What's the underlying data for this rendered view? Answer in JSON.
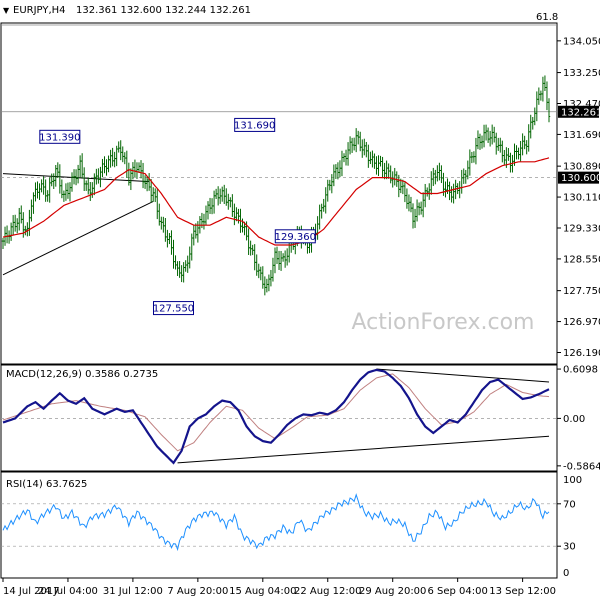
{
  "header": {
    "symbol": "EURJPY,H4",
    "ohlc": "132.361 132.600 132.244 132.261",
    "dropdown_glyph": "▼"
  },
  "watermark": "ActionForex.com",
  "colors": {
    "up_bar": "#006400",
    "down_bar": "#006400",
    "ma_line": "#d40000",
    "macd_line": "#14148c",
    "signal_line": "#c08080",
    "rsi_line": "#1e90ff",
    "price_tag_bg": "#000000",
    "price_tag_text": "#ffffff",
    "label_border": "#00008b",
    "label_text": "#00008b",
    "watermark": "#c8c8c8"
  },
  "chart_data": [
    {
      "type": "candlestick",
      "name": "EURJPY H4 price",
      "ylim": [
        125.9,
        134.5
      ],
      "yticks": [
        "134.050",
        "133.250",
        "132.470",
        "131.690",
        "130.890",
        "130.110",
        "129.330",
        "128.550",
        "127.750",
        "126.970",
        "126.190"
      ],
      "current_price": 132.261,
      "current_price_label": "132.261",
      "reference_level": 130.6,
      "reference_level_label": "130.600",
      "fib_label": "61.8",
      "annotations": [
        {
          "text": "131.390",
          "value": 131.39,
          "bar": 28
        },
        {
          "text": "127.550",
          "value": 127.55,
          "bar": 84
        },
        {
          "text": "131.690",
          "value": 131.69,
          "bar": 124
        },
        {
          "text": "129.360",
          "value": 129.36,
          "bar": 144
        }
      ],
      "close_path": [
        [
          0,
          129.0
        ],
        [
          4,
          129.3
        ],
        [
          8,
          129.6
        ],
        [
          12,
          129.2
        ],
        [
          14,
          130.0
        ],
        [
          18,
          130.4
        ],
        [
          22,
          130.2
        ],
        [
          26,
          130.8
        ],
        [
          30,
          130.1
        ],
        [
          34,
          130.5
        ],
        [
          38,
          130.9
        ],
        [
          42,
          130.2
        ],
        [
          46,
          130.6
        ],
        [
          50,
          130.9
        ],
        [
          54,
          131.1
        ],
        [
          58,
          131.35
        ],
        [
          62,
          130.6
        ],
        [
          66,
          130.9
        ],
        [
          70,
          130.5
        ],
        [
          74,
          130.2
        ],
        [
          78,
          129.4
        ],
        [
          82,
          129.0
        ],
        [
          86,
          128.2
        ],
        [
          90,
          128.3
        ],
        [
          94,
          129.2
        ],
        [
          98,
          129.5
        ],
        [
          102,
          129.9
        ],
        [
          106,
          130.2
        ],
        [
          110,
          130.1
        ],
        [
          114,
          129.7
        ],
        [
          118,
          129.4
        ],
        [
          122,
          128.8
        ],
        [
          126,
          128.2
        ],
        [
          130,
          127.8
        ],
        [
          134,
          128.6
        ],
        [
          138,
          128.5
        ],
        [
          142,
          128.9
        ],
        [
          146,
          129.2
        ],
        [
          150,
          128.9
        ],
        [
          154,
          129.3
        ],
        [
          158,
          130.0
        ],
        [
          162,
          130.6
        ],
        [
          166,
          130.9
        ],
        [
          170,
          131.3
        ],
        [
          174,
          131.6
        ],
        [
          178,
          131.3
        ],
        [
          182,
          131.0
        ],
        [
          186,
          130.9
        ],
        [
          190,
          130.7
        ],
        [
          194,
          130.5
        ],
        [
          198,
          130.2
        ],
        [
          202,
          129.6
        ],
        [
          206,
          129.9
        ],
        [
          210,
          130.4
        ],
        [
          214,
          130.8
        ],
        [
          218,
          130.3
        ],
        [
          222,
          130.2
        ],
        [
          226,
          130.5
        ],
        [
          230,
          131.0
        ],
        [
          234,
          131.5
        ],
        [
          238,
          131.7
        ],
        [
          242,
          131.6
        ],
        [
          246,
          131.2
        ],
        [
          250,
          131.0
        ],
        [
          254,
          131.3
        ],
        [
          258,
          131.5
        ],
        [
          262,
          132.3
        ],
        [
          266,
          133.0
        ],
        [
          269,
          132.26
        ]
      ],
      "ma_path": [
        [
          0,
          129.1
        ],
        [
          10,
          129.2
        ],
        [
          20,
          129.5
        ],
        [
          30,
          129.9
        ],
        [
          40,
          130.1
        ],
        [
          50,
          130.3
        ],
        [
          56,
          130.6
        ],
        [
          62,
          130.8
        ],
        [
          70,
          130.7
        ],
        [
          78,
          130.2
        ],
        [
          86,
          129.6
        ],
        [
          94,
          129.4
        ],
        [
          102,
          129.4
        ],
        [
          110,
          129.6
        ],
        [
          118,
          129.5
        ],
        [
          126,
          129.1
        ],
        [
          134,
          128.9
        ],
        [
          142,
          128.9
        ],
        [
          150,
          129.0
        ],
        [
          158,
          129.3
        ],
        [
          166,
          129.8
        ],
        [
          174,
          130.3
        ],
        [
          182,
          130.6
        ],
        [
          190,
          130.6
        ],
        [
          198,
          130.5
        ],
        [
          206,
          130.2
        ],
        [
          214,
          130.2
        ],
        [
          222,
          130.3
        ],
        [
          230,
          130.4
        ],
        [
          238,
          130.7
        ],
        [
          246,
          130.9
        ],
        [
          254,
          131.0
        ],
        [
          262,
          131.0
        ],
        [
          269,
          131.1
        ]
      ]
    },
    {
      "type": "line",
      "name": "MACD",
      "label": "MACD(12,26,9) 0.3586 0.2735",
      "ylim": [
        -0.65,
        0.66
      ],
      "yticks": [
        "0.6098",
        "0.00",
        "-0.5864"
      ],
      "macd_path": [
        [
          0,
          -0.05
        ],
        [
          6,
          0.0
        ],
        [
          12,
          0.15
        ],
        [
          16,
          0.2
        ],
        [
          20,
          0.12
        ],
        [
          24,
          0.22
        ],
        [
          28,
          0.31
        ],
        [
          32,
          0.22
        ],
        [
          36,
          0.18
        ],
        [
          40,
          0.25
        ],
        [
          44,
          0.12
        ],
        [
          50,
          0.05
        ],
        [
          56,
          0.12
        ],
        [
          60,
          0.08
        ],
        [
          64,
          0.1
        ],
        [
          68,
          -0.05
        ],
        [
          72,
          -0.2
        ],
        [
          76,
          -0.35
        ],
        [
          80,
          -0.45
        ],
        [
          84,
          -0.55
        ],
        [
          88,
          -0.4
        ],
        [
          92,
          -0.1
        ],
        [
          96,
          0.0
        ],
        [
          100,
          0.05
        ],
        [
          104,
          0.15
        ],
        [
          108,
          0.22
        ],
        [
          112,
          0.2
        ],
        [
          116,
          0.1
        ],
        [
          120,
          -0.1
        ],
        [
          124,
          -0.22
        ],
        [
          128,
          -0.28
        ],
        [
          132,
          -0.3
        ],
        [
          136,
          -0.2
        ],
        [
          140,
          -0.08
        ],
        [
          144,
          0.0
        ],
        [
          148,
          0.05
        ],
        [
          152,
          0.04
        ],
        [
          156,
          0.07
        ],
        [
          160,
          0.05
        ],
        [
          164,
          0.1
        ],
        [
          168,
          0.2
        ],
        [
          172,
          0.35
        ],
        [
          176,
          0.48
        ],
        [
          180,
          0.57
        ],
        [
          184,
          0.6
        ],
        [
          188,
          0.58
        ],
        [
          192,
          0.5
        ],
        [
          196,
          0.4
        ],
        [
          200,
          0.25
        ],
        [
          204,
          0.05
        ],
        [
          208,
          -0.1
        ],
        [
          212,
          -0.18
        ],
        [
          216,
          -0.1
        ],
        [
          220,
          -0.02
        ],
        [
          224,
          -0.05
        ],
        [
          228,
          0.05
        ],
        [
          232,
          0.2
        ],
        [
          236,
          0.35
        ],
        [
          240,
          0.45
        ],
        [
          244,
          0.48
        ],
        [
          248,
          0.4
        ],
        [
          252,
          0.32
        ],
        [
          256,
          0.24
        ],
        [
          260,
          0.26
        ],
        [
          264,
          0.3
        ],
        [
          269,
          0.36
        ]
      ],
      "signal_path": [
        [
          0,
          -0.02
        ],
        [
          12,
          0.08
        ],
        [
          24,
          0.18
        ],
        [
          36,
          0.22
        ],
        [
          48,
          0.15
        ],
        [
          60,
          0.1
        ],
        [
          70,
          0.02
        ],
        [
          78,
          -0.2
        ],
        [
          86,
          -0.4
        ],
        [
          94,
          -0.3
        ],
        [
          102,
          -0.05
        ],
        [
          110,
          0.15
        ],
        [
          118,
          0.1
        ],
        [
          126,
          -0.12
        ],
        [
          134,
          -0.25
        ],
        [
          142,
          -0.12
        ],
        [
          150,
          0.02
        ],
        [
          160,
          0.04
        ],
        [
          168,
          0.12
        ],
        [
          176,
          0.35
        ],
        [
          184,
          0.5
        ],
        [
          192,
          0.55
        ],
        [
          200,
          0.38
        ],
        [
          208,
          0.12
        ],
        [
          216,
          -0.08
        ],
        [
          224,
          -0.04
        ],
        [
          232,
          0.08
        ],
        [
          240,
          0.3
        ],
        [
          248,
          0.42
        ],
        [
          256,
          0.32
        ],
        [
          264,
          0.28
        ],
        [
          269,
          0.27
        ]
      ]
    },
    {
      "type": "line",
      "name": "RSI",
      "label": "RSI(14) 63.7625",
      "ylim": [
        0,
        100
      ],
      "yticks": [
        "100",
        "70",
        "30",
        "0"
      ],
      "levels": [
        70,
        30
      ],
      "rsi_path": [
        [
          0,
          45
        ],
        [
          6,
          55
        ],
        [
          12,
          64
        ],
        [
          16,
          52
        ],
        [
          20,
          60
        ],
        [
          26,
          68
        ],
        [
          30,
          56
        ],
        [
          34,
          62
        ],
        [
          40,
          48
        ],
        [
          44,
          58
        ],
        [
          50,
          60
        ],
        [
          56,
          68
        ],
        [
          62,
          52
        ],
        [
          66,
          62
        ],
        [
          70,
          55
        ],
        [
          74,
          48
        ],
        [
          78,
          38
        ],
        [
          82,
          32
        ],
        [
          86,
          30
        ],
        [
          90,
          45
        ],
        [
          94,
          55
        ],
        [
          98,
          60
        ],
        [
          104,
          62
        ],
        [
          110,
          50
        ],
        [
          114,
          58
        ],
        [
          118,
          40
        ],
        [
          122,
          35
        ],
        [
          126,
          30
        ],
        [
          130,
          38
        ],
        [
          134,
          40
        ],
        [
          138,
          48
        ],
        [
          142,
          42
        ],
        [
          146,
          55
        ],
        [
          150,
          44
        ],
        [
          154,
          52
        ],
        [
          158,
          60
        ],
        [
          162,
          64
        ],
        [
          166,
          70
        ],
        [
          170,
          72
        ],
        [
          174,
          76
        ],
        [
          178,
          62
        ],
        [
          182,
          58
        ],
        [
          186,
          60
        ],
        [
          190,
          52
        ],
        [
          194,
          54
        ],
        [
          198,
          50
        ],
        [
          202,
          35
        ],
        [
          206,
          44
        ],
        [
          210,
          58
        ],
        [
          214,
          62
        ],
        [
          218,
          48
        ],
        [
          222,
          52
        ],
        [
          226,
          62
        ],
        [
          230,
          68
        ],
        [
          234,
          70
        ],
        [
          238,
          72
        ],
        [
          242,
          60
        ],
        [
          246,
          56
        ],
        [
          250,
          62
        ],
        [
          254,
          70
        ],
        [
          258,
          65
        ],
        [
          262,
          74
        ],
        [
          266,
          58
        ],
        [
          269,
          64
        ]
      ]
    }
  ],
  "time_axis": {
    "labels": [
      "14 Jul 2017",
      "24 Jul 04:00",
      "31 Jul 12:00",
      "7 Aug 20:00",
      "15 Aug 04:00",
      "22 Aug 12:00",
      "29 Aug 20:00",
      "6 Sep 04:00",
      "13 Sep 12:00"
    ],
    "label_bars": [
      0,
      32,
      64,
      96,
      128,
      160,
      192,
      224,
      256
    ]
  }
}
